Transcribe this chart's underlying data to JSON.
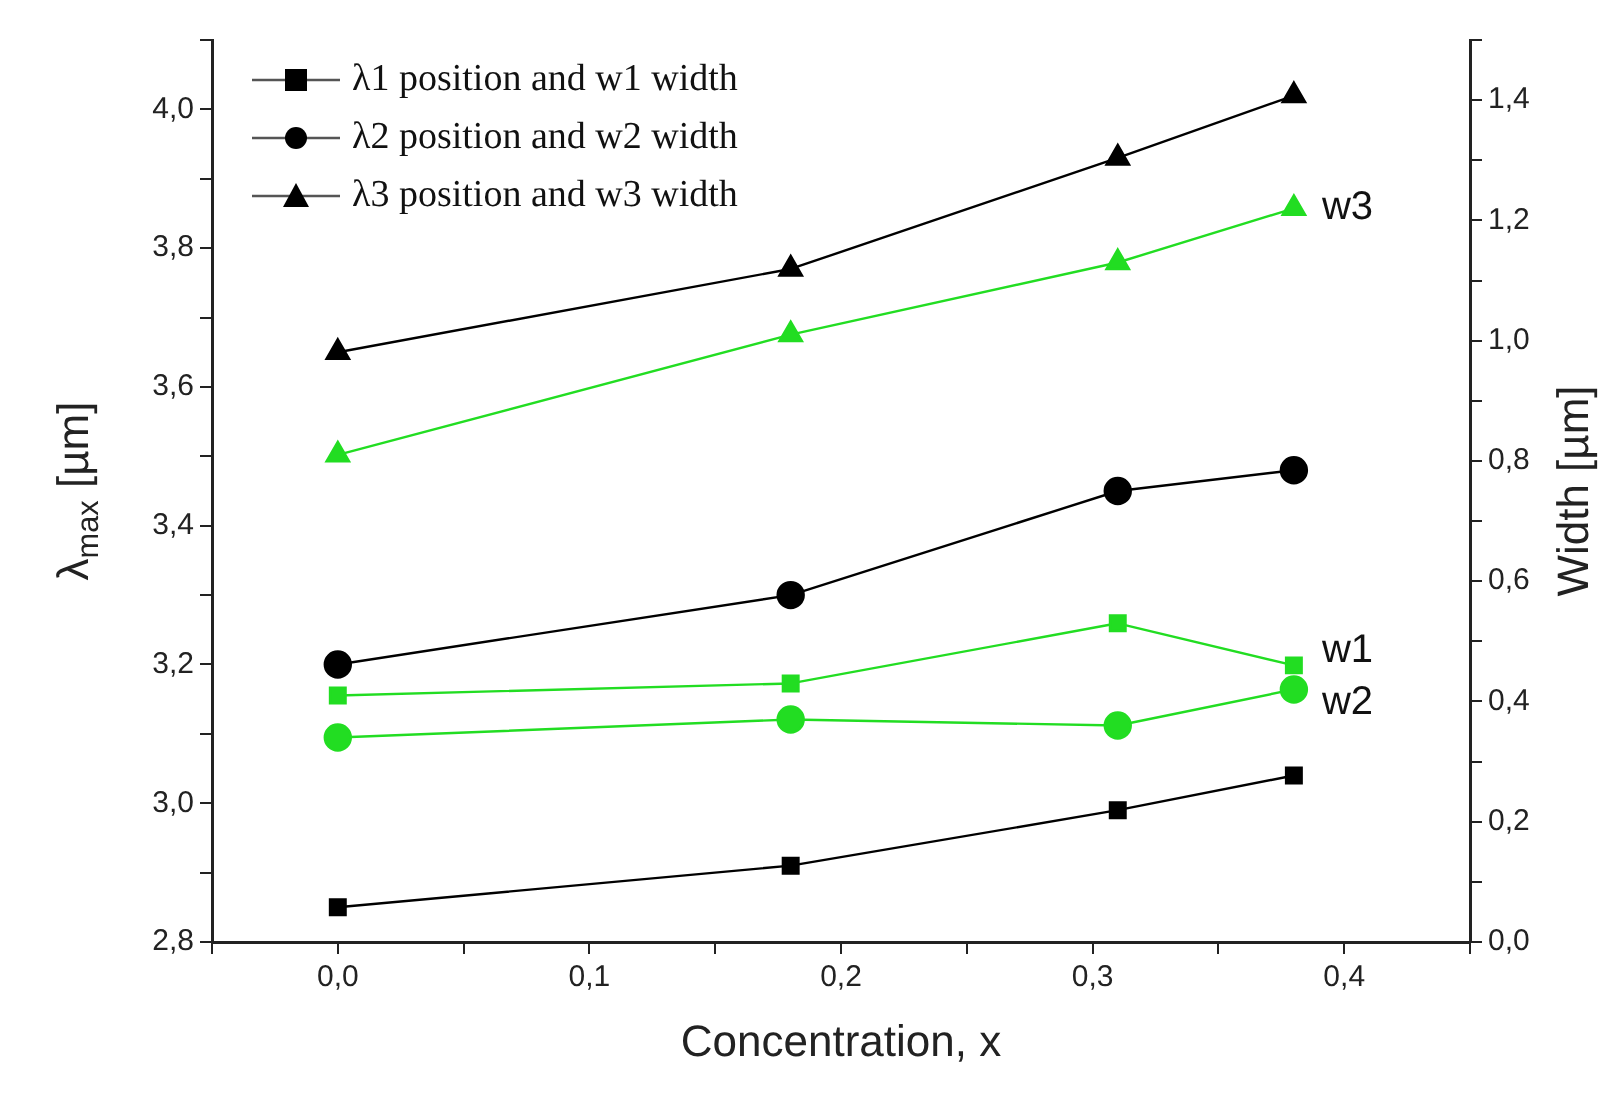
{
  "chart_data": {
    "type": "line",
    "xlabel": "Concentration, x",
    "ylabel": "λ$_{max}$ [µm]",
    "y2label": "Width [µm]",
    "x": [
      0,
      0.18,
      0.31,
      0.38
    ],
    "xlim": [
      -0.05,
      0.45
    ],
    "xticks": [
      {
        "value": -0.05,
        "label": null
      },
      {
        "value": 0,
        "label": "0,0"
      },
      {
        "value": 0.05,
        "label": null
      },
      {
        "value": 0.1,
        "label": "0,1"
      },
      {
        "value": 0.15,
        "label": null
      },
      {
        "value": 0.2,
        "label": "0,2"
      },
      {
        "value": 0.25,
        "label": null
      },
      {
        "value": 0.3,
        "label": "0,3"
      },
      {
        "value": 0.35,
        "label": null
      },
      {
        "value": 0.4,
        "label": "0,4"
      },
      {
        "value": 0.45,
        "label": null
      }
    ],
    "ylim": [
      2.8,
      4.1
    ],
    "yticks": [
      {
        "value": 2.8,
        "label": "2,8"
      },
      {
        "value": 2.9,
        "label": null
      },
      {
        "value": 3.0,
        "label": "3,0"
      },
      {
        "value": 3.1,
        "label": null
      },
      {
        "value": 3.2,
        "label": "3,2"
      },
      {
        "value": 3.3,
        "label": null
      },
      {
        "value": 3.4,
        "label": "3,4"
      },
      {
        "value": 3.5,
        "label": null
      },
      {
        "value": 3.6,
        "label": "3,6"
      },
      {
        "value": 3.7,
        "label": null
      },
      {
        "value": 3.8,
        "label": "3,8"
      },
      {
        "value": 3.9,
        "label": null
      },
      {
        "value": 4.0,
        "label": "4,0"
      },
      {
        "value": 4.1,
        "label": null
      }
    ],
    "y2lim": [
      0,
      1.5
    ],
    "y2ticks": [
      {
        "value": 0,
        "label": "0,0"
      },
      {
        "value": 0.1,
        "label": null
      },
      {
        "value": 0.2,
        "label": "0,2"
      },
      {
        "value": 0.3,
        "label": null
      },
      {
        "value": 0.4,
        "label": "0,4"
      },
      {
        "value": 0.5,
        "label": null
      },
      {
        "value": 0.6,
        "label": "0,6"
      },
      {
        "value": 0.7,
        "label": null
      },
      {
        "value": 0.8,
        "label": "0,8"
      },
      {
        "value": 0.9,
        "label": null
      },
      {
        "value": 1.0,
        "label": "1,0"
      },
      {
        "value": 1.1,
        "label": null
      },
      {
        "value": 1.2,
        "label": "1,2"
      },
      {
        "value": 1.3,
        "label": null
      },
      {
        "value": 1.4,
        "label": "1,4"
      },
      {
        "value": 1.5,
        "label": null
      }
    ],
    "legend": "top left",
    "grid": false,
    "line_style": "solid",
    "series": [
      {
        "name": "λ1 position and w1 width",
        "color": "#000000",
        "marker": "square",
        "values": [
          2.85,
          2.91,
          2.99,
          3.04
        ]
      },
      {
        "name": "λ2 position and w2 width",
        "color": "#000000",
        "marker": "circle",
        "values": [
          3.2,
          3.3,
          3.45,
          3.48
        ]
      },
      {
        "name": "λ3 position and w3 width",
        "color": "#000000",
        "marker": "triangle",
        "values": [
          3.65,
          3.77,
          3.93,
          4.02
        ]
      },
      {
        "name": "w1",
        "color": "#22dd22",
        "marker": "square",
        "axis": "y2",
        "values": [
          0.41,
          0.43,
          0.53,
          0.46
        ]
      },
      {
        "name": "w2",
        "color": "#22dd22",
        "marker": "circle",
        "axis": "y2",
        "values": [
          0.34,
          0.37,
          0.36,
          0.42
        ]
      },
      {
        "name": "w3",
        "color": "#22dd22",
        "marker": "triangle",
        "axis": "y2",
        "values": [
          0.81,
          1.01,
          1.13,
          1.22
        ]
      }
    ]
  }
}
